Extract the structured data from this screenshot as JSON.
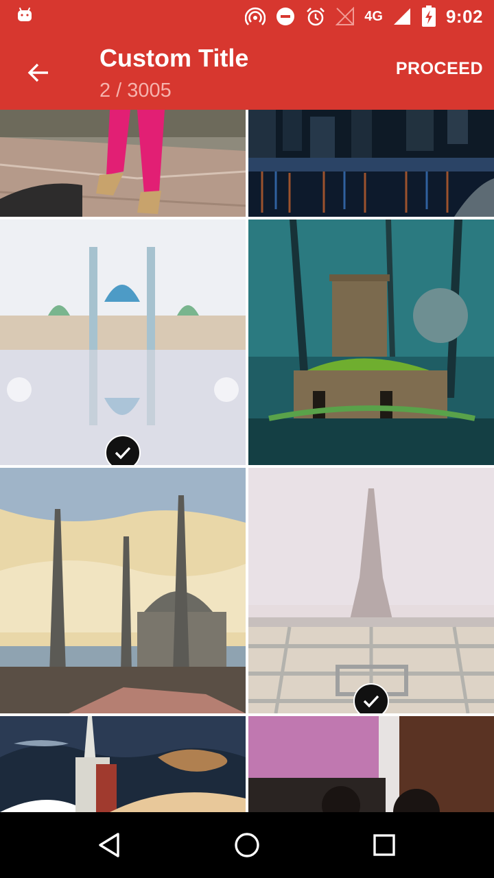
{
  "status_bar": {
    "network": "4G",
    "time": "9:02",
    "icons": [
      "android-icon",
      "hotspot-icon",
      "do-not-disturb-icon",
      "alarm-icon",
      "signal-empty-icon",
      "signal-icon",
      "battery-charging-icon"
    ]
  },
  "app_bar": {
    "title": "Custom Title",
    "subtitle": "2 / 3005",
    "action_label": "PROCEED",
    "back_icon": "arrow-back-icon",
    "color": "#d7372f"
  },
  "gallery": {
    "tiles": [
      {
        "name": "photo-girl-feet",
        "selected": false
      },
      {
        "name": "photo-city-night-marina",
        "selected": false
      },
      {
        "name": "photo-mosque-reflection",
        "selected": true
      },
      {
        "name": "photo-forest-tower",
        "selected": false
      },
      {
        "name": "photo-blue-mosque",
        "selected": false
      },
      {
        "name": "photo-eiffel-tower",
        "selected": true
      },
      {
        "name": "photo-castle-sky",
        "selected": false
      },
      {
        "name": "photo-people-room",
        "selected": false
      }
    ]
  },
  "nav_bar": {
    "buttons": [
      "back-triangle-icon",
      "home-circle-icon",
      "recents-square-icon"
    ]
  }
}
